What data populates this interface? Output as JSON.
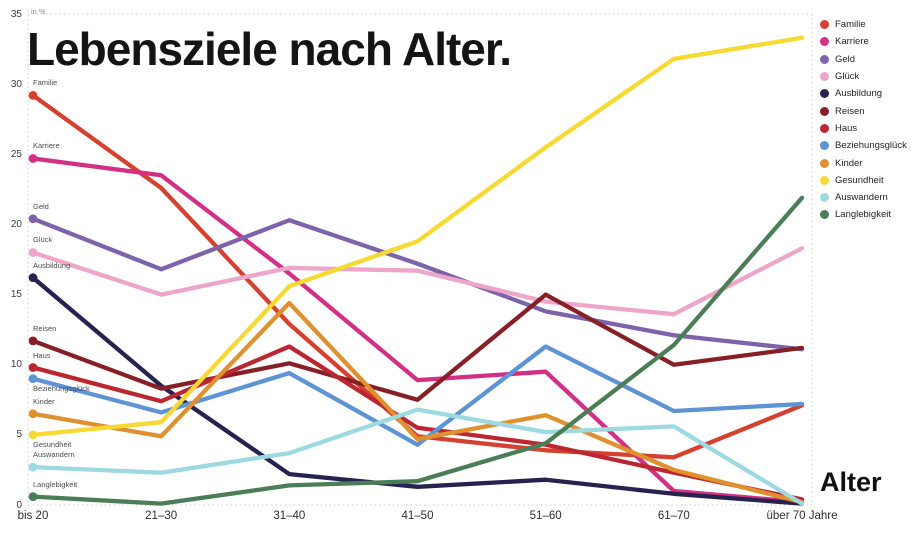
{
  "chart_data": {
    "type": "line",
    "title": "Lebensziele nach Alter.",
    "xlabel": "Alter",
    "ylabel": "in %",
    "ylim": [
      0,
      35
    ],
    "y_ticks": [
      0,
      5,
      10,
      15,
      20,
      25,
      30,
      35
    ],
    "grid": "dotted plot frame only, no inner gridlines",
    "legend_position": "right-top",
    "categories": [
      "bis 20",
      "21–30",
      "31–40",
      "41–50",
      "51–60",
      "61–70",
      "über 70 Jahre"
    ],
    "series": [
      {
        "name": "Familie",
        "color": "#d6402e",
        "values": [
          29.2,
          22.6,
          12.9,
          4.9,
          3.9,
          3.4,
          7.1
        ]
      },
      {
        "name": "Karriere",
        "color": "#d13084",
        "values": [
          24.7,
          23.5,
          16.5,
          8.9,
          9.5,
          1.0,
          0.2
        ]
      },
      {
        "name": "Geld",
        "color": "#7d63a9",
        "values": [
          20.4,
          16.8,
          20.3,
          17.2,
          13.8,
          12.1,
          11.1
        ]
      },
      {
        "name": "Glück",
        "color": "#eda6c9",
        "values": [
          18.0,
          15.0,
          16.9,
          16.7,
          14.5,
          13.6,
          18.3
        ]
      },
      {
        "name": "Ausbildung",
        "color": "#272350",
        "values": [
          16.2,
          8.5,
          2.2,
          1.3,
          1.8,
          0.8,
          0.1
        ]
      },
      {
        "name": "Reisen",
        "color": "#872026",
        "values": [
          11.7,
          8.3,
          10.1,
          7.5,
          15.0,
          10.0,
          11.2
        ]
      },
      {
        "name": "Haus",
        "color": "#bb2731",
        "values": [
          9.8,
          7.4,
          11.3,
          5.5,
          4.3,
          2.3,
          0.4
        ]
      },
      {
        "name": "Beziehungsglück",
        "color": "#5e93d4",
        "values": [
          9.0,
          6.6,
          9.4,
          4.3,
          11.3,
          6.7,
          7.2
        ],
        "label_below": true
      },
      {
        "name": "Kinder",
        "color": "#e0912f",
        "values": [
          6.5,
          4.9,
          14.4,
          4.7,
          6.4,
          2.5,
          0.2
        ]
      },
      {
        "name": "Gesundheit",
        "color": "#f7d931",
        "values": [
          5.0,
          5.9,
          15.6,
          18.8,
          25.5,
          31.8,
          33.3
        ],
        "label_below": true
      },
      {
        "name": "Auswandern",
        "color": "#9cd9e0",
        "values": [
          2.7,
          2.3,
          3.7,
          6.8,
          5.2,
          5.6,
          0.1
        ]
      },
      {
        "name": "Langlebigkeit",
        "color": "#4b7d57",
        "values": [
          0.6,
          0.1,
          1.4,
          1.7,
          4.4,
          11.4,
          21.9
        ]
      }
    ]
  }
}
